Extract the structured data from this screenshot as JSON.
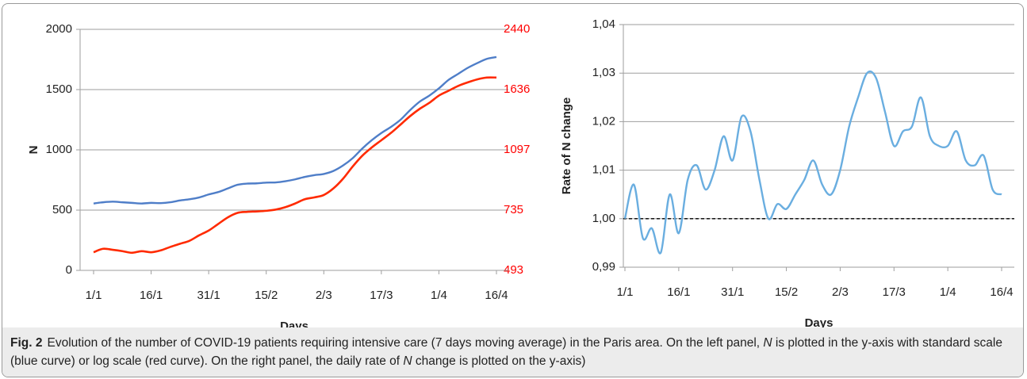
{
  "chart_data": [
    {
      "type": "line",
      "categories": [
        "1/1",
        null,
        null,
        null,
        null,
        null,
        "16/1",
        null,
        null,
        null,
        null,
        null,
        "31/1",
        null,
        null,
        null,
        null,
        null,
        "15/2",
        null,
        null,
        null,
        null,
        null,
        "2/3",
        null,
        null,
        null,
        null,
        null,
        "17/3",
        null,
        null,
        null,
        null,
        null,
        "1/4",
        null,
        null,
        null,
        null,
        null,
        "16/4"
      ],
      "ylim": [
        0,
        2000
      ],
      "yticks": [
        0,
        500,
        1000,
        1500,
        2000
      ],
      "y2lim": [
        493,
        2440
      ],
      "y2ticks": [
        493,
        735,
        1097,
        1636,
        2440
      ],
      "y2scale": "log",
      "y2color": "#ff0000",
      "grid": true,
      "ylabel": "N",
      "xlabel": "Days",
      "series": [
        {
          "color": "#4f7ec8",
          "values": [
            555,
            565,
            570,
            565,
            560,
            555,
            560,
            558,
            565,
            580,
            590,
            605,
            630,
            650,
            680,
            710,
            720,
            722,
            728,
            730,
            740,
            755,
            775,
            790,
            800,
            825,
            870,
            930,
            1010,
            1080,
            1140,
            1190,
            1250,
            1330,
            1400,
            1450,
            1510,
            1580,
            1630,
            1680,
            1720,
            1755,
            1770
          ]
        },
        {
          "color": "#ff2a00",
          "axis": "y2",
          "values": [
            556,
            569,
            565,
            560,
            554,
            560,
            556,
            563,
            576,
            588,
            600,
            622,
            642,
            671,
            701,
            722,
            727,
            729,
            732,
            738,
            750,
            768,
            790,
            800,
            813,
            849,
            905,
            981,
            1054,
            1114,
            1169,
            1227,
            1297,
            1372,
            1440,
            1498,
            1572,
            1623,
            1676,
            1716,
            1751,
            1772,
            1772
          ]
        }
      ]
    },
    {
      "type": "line",
      "categories": [
        "1/1",
        null,
        null,
        null,
        null,
        null,
        "16/1",
        null,
        null,
        null,
        null,
        null,
        "31/1",
        null,
        null,
        null,
        null,
        null,
        "15/2",
        null,
        null,
        null,
        null,
        null,
        "2/3",
        null,
        null,
        null,
        null,
        null,
        "17/3",
        null,
        null,
        null,
        null,
        null,
        "1/4",
        null,
        null,
        null,
        null,
        null,
        "16/4"
      ],
      "ylim": [
        0.99,
        1.04
      ],
      "yticks": [
        {
          "value": 0.99,
          "label": "0,99"
        },
        {
          "value": 1.0,
          "label": "1,00"
        },
        {
          "value": 1.01,
          "label": "1,01"
        },
        {
          "value": 1.02,
          "label": "1,02"
        },
        {
          "value": 1.03,
          "label": "1,03"
        },
        {
          "value": 1.04,
          "label": "1,04"
        }
      ],
      "reference_line": 1.0,
      "grid": true,
      "ylabel": "Rate of N change",
      "xlabel": "Days",
      "series": [
        {
          "color": "#6aaee0",
          "values": [
            1.0,
            1.007,
            0.996,
            0.998,
            0.993,
            1.005,
            0.997,
            1.008,
            1.011,
            1.006,
            1.01,
            1.017,
            1.012,
            1.021,
            1.018,
            1.008,
            1.0,
            1.003,
            1.002,
            1.005,
            1.008,
            1.012,
            1.007,
            1.005,
            1.01,
            1.019,
            1.025,
            1.03,
            1.029,
            1.022,
            1.015,
            1.018,
            1.019,
            1.025,
            1.017,
            1.015,
            1.015,
            1.018,
            1.012,
            1.011,
            1.013,
            1.006,
            1.005
          ]
        }
      ]
    }
  ],
  "caption": {
    "label": "Fig. 2",
    "parts": [
      "Evolution of the number of COVID-19 patients requiring intensive care (7 days moving average) in the Paris area. On the left panel, ",
      "N",
      " is plotted in the y-axis with standard scale (blue curve) or log scale (red curve). On the right panel, the daily rate of ",
      "N",
      " change is plotted on the y-axis)"
    ]
  }
}
